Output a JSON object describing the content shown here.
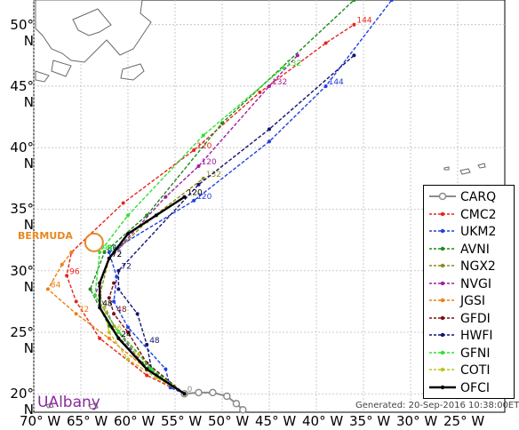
{
  "chart_data": {
    "type": "map",
    "xlim": [
      -70,
      -20
    ],
    "ylim": [
      18.5,
      52
    ],
    "lat_ticks": [
      {
        "value": 20,
        "label": "20° N"
      },
      {
        "value": 25,
        "label": "25° N"
      },
      {
        "value": 30,
        "label": "30° N"
      },
      {
        "value": 35,
        "label": "35° N"
      },
      {
        "value": 40,
        "label": "40° N"
      },
      {
        "value": 45,
        "label": "45° N"
      },
      {
        "value": 50,
        "label": "50° N"
      }
    ],
    "lon_ticks": [
      {
        "value": -70,
        "label": "70° W"
      },
      {
        "value": -65,
        "label": "65° W"
      },
      {
        "value": -60,
        "label": "60° W"
      },
      {
        "value": -55,
        "label": "55° W"
      },
      {
        "value": -50,
        "label": "50° W"
      },
      {
        "value": -45,
        "label": "45° W"
      },
      {
        "value": -40,
        "label": "40° W"
      },
      {
        "value": -35,
        "label": "35° W"
      },
      {
        "value": -30,
        "label": "30° W"
      },
      {
        "value": -25,
        "label": "25° W"
      }
    ],
    "grid": true,
    "legend_position": "bottom-right",
    "bermuda": {
      "label": "BERMUDA",
      "lon": -63.6,
      "lat": 32.3,
      "color": "#e8881f"
    },
    "series": [
      {
        "name": "CARQ",
        "color": "#8c8c8c",
        "points": [
          [
            -54,
            20
          ],
          [
            -52.5,
            20.1
          ],
          [
            -51,
            20.1
          ],
          [
            -49.5,
            19.8
          ],
          [
            -48.5,
            19.2
          ],
          [
            -47.8,
            18.7
          ]
        ],
        "labels": [
          {
            "i": 0,
            "text": "0"
          }
        ]
      },
      {
        "name": "CMC2",
        "color": "#e8241c",
        "points": [
          [
            -54,
            20
          ],
          [
            -58,
            21.5
          ],
          [
            -63,
            24.5
          ],
          [
            -65.5,
            27.5
          ],
          [
            -66.5,
            29.6
          ],
          [
            -66,
            31.5
          ],
          [
            -60.5,
            35.5
          ],
          [
            -53,
            39.8
          ],
          [
            -46,
            44.5
          ],
          [
            -39,
            48.5
          ],
          [
            -36,
            50
          ]
        ],
        "labels": [
          {
            "i": 4,
            "text": "96"
          },
          {
            "i": 7,
            "text": "120"
          },
          {
            "i": 10,
            "text": "144"
          }
        ]
      },
      {
        "name": "UKM2",
        "color": "#2040e0",
        "points": [
          [
            -54,
            20
          ],
          [
            -55.5,
            20.5
          ],
          [
            -56,
            22
          ],
          [
            -60,
            25.4
          ],
          [
            -61.5,
            27.5
          ],
          [
            -61.2,
            29.5
          ],
          [
            -62,
            31.5
          ],
          [
            -53,
            35.7
          ],
          [
            -45,
            40.5
          ],
          [
            -39,
            45
          ],
          [
            -32,
            52
          ]
        ],
        "labels": [
          {
            "i": 6,
            "text": "72"
          },
          {
            "i": 7,
            "text": "120"
          },
          {
            "i": 9,
            "text": "144"
          }
        ]
      },
      {
        "name": "AVNI",
        "color": "#1f8a1f",
        "points": [
          [
            -54,
            20
          ],
          [
            -58.5,
            22.5
          ],
          [
            -62,
            25.5
          ],
          [
            -64,
            28.5
          ],
          [
            -62.5,
            31.5
          ],
          [
            -58,
            34.5
          ],
          [
            -50,
            42
          ],
          [
            -36,
            52
          ]
        ],
        "labels": [
          {
            "i": 4,
            "text": "96"
          }
        ]
      },
      {
        "name": "NGX2",
        "color": "#8a8a20",
        "points": [
          [
            -54,
            20
          ],
          [
            -58,
            22.5
          ],
          [
            -61.5,
            25.5
          ],
          [
            -63,
            28
          ],
          [
            -62,
            31
          ],
          [
            -58,
            34
          ],
          [
            -52,
            37.5
          ]
        ],
        "labels": [
          {
            "i": 6,
            "text": "132"
          }
        ]
      },
      {
        "name": "NVGI",
        "color": "#a020a0",
        "points": [
          [
            -54,
            20
          ],
          [
            -58,
            22
          ],
          [
            -61,
            25
          ],
          [
            -63.5,
            28
          ],
          [
            -62,
            31
          ],
          [
            -56,
            36
          ],
          [
            -52.5,
            38.5
          ],
          [
            -45,
            45
          ],
          [
            -42,
            47.5
          ]
        ],
        "labels": [
          {
            "i": 4,
            "text": "72"
          },
          {
            "i": 6,
            "text": "120"
          },
          {
            "i": 7,
            "text": "132"
          }
        ]
      },
      {
        "name": "JGSI",
        "color": "#f07e10",
        "points": [
          [
            -54,
            20
          ],
          [
            -58,
            22
          ],
          [
            -62,
            24.5
          ],
          [
            -65.5,
            26.5
          ],
          [
            -68.5,
            28.5
          ],
          [
            -67,
            30.5
          ],
          [
            -66,
            31.5
          ]
        ],
        "labels": [
          {
            "i": 3,
            "text": "72"
          },
          {
            "i": 4,
            "text": "84"
          }
        ]
      },
      {
        "name": "GFDI",
        "color": "#7a1010",
        "points": [
          [
            -54,
            20
          ],
          [
            -58,
            22.5
          ],
          [
            -60,
            25
          ],
          [
            -61.5,
            26.5
          ],
          [
            -62,
            27.8
          ],
          [
            -61.5,
            29
          ]
        ],
        "labels": [
          {
            "i": 3,
            "text": "48"
          }
        ]
      },
      {
        "name": "HWFI",
        "color": "#141470",
        "points": [
          [
            -54,
            20
          ],
          [
            -56,
            21
          ],
          [
            -57.5,
            22
          ],
          [
            -58,
            24
          ],
          [
            -59,
            26.5
          ],
          [
            -61,
            28.5
          ],
          [
            -61,
            30
          ],
          [
            -52.5,
            37
          ],
          [
            -45,
            41.5
          ],
          [
            -36,
            47.5
          ]
        ],
        "labels": [
          {
            "i": 3,
            "text": "48"
          },
          {
            "i": 6,
            "text": "72"
          }
        ]
      },
      {
        "name": "GFNI",
        "color": "#30e030",
        "points": [
          [
            -54,
            20
          ],
          [
            -57.5,
            22
          ],
          [
            -61,
            25
          ],
          [
            -63.5,
            28
          ],
          [
            -63,
            31.5
          ],
          [
            -60,
            34.5
          ],
          [
            -52,
            41
          ],
          [
            -43.5,
            46.5
          ]
        ],
        "labels": [
          {
            "i": 4,
            "text": "96"
          },
          {
            "i": 7,
            "text": "132"
          }
        ]
      },
      {
        "name": "COTI",
        "color": "#c0c020",
        "points": [
          [
            -54,
            20
          ],
          [
            -57,
            21.3
          ],
          [
            -60,
            22.8
          ],
          [
            -62,
            25
          ],
          [
            -62.5,
            27
          ]
        ],
        "labels": [
          {
            "i": 2,
            "text": "24"
          },
          {
            "i": 3,
            "text": "36"
          }
        ]
      },
      {
        "name": "OFCI",
        "color": "#000000",
        "points": [
          [
            -54,
            20
          ],
          [
            -58,
            22
          ],
          [
            -61,
            24.5
          ],
          [
            -63,
            27
          ],
          [
            -63,
            29
          ],
          [
            -62,
            31
          ],
          [
            -60,
            33
          ],
          [
            -57,
            34.5
          ],
          [
            -54,
            36
          ]
        ],
        "labels": [
          {
            "i": 2,
            "text": "24"
          },
          {
            "i": 3,
            "text": "48"
          },
          {
            "i": 5,
            "text": "72"
          },
          {
            "i": 8,
            "text": "120"
          }
        ]
      }
    ]
  },
  "footer": "Generated: 20-Sep-2016 10:38:00ET",
  "brand": "UAlbany",
  "bermuda_label": "BERMUDA"
}
